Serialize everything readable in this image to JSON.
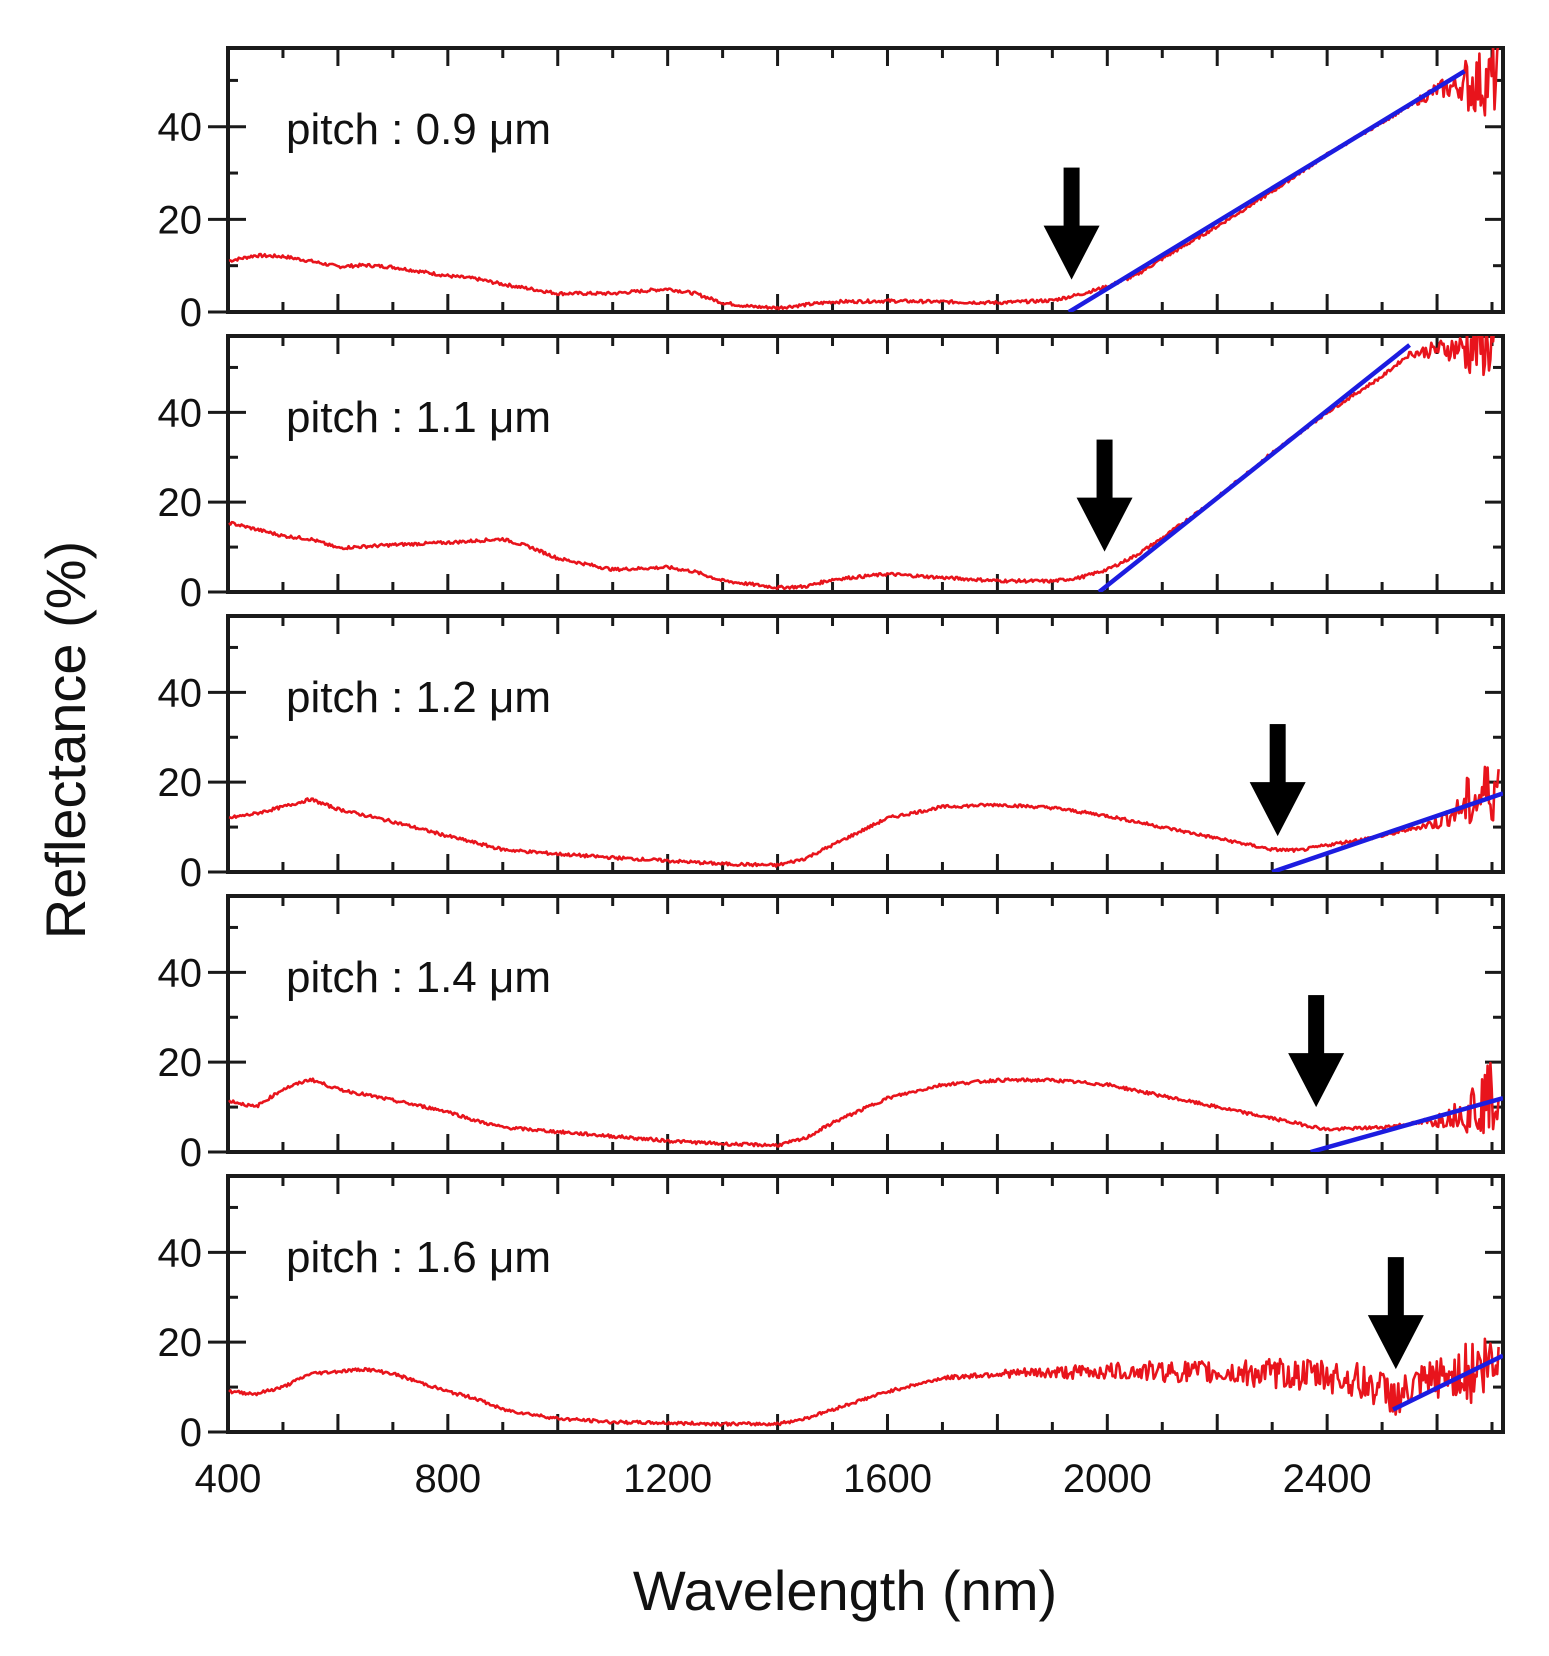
{
  "chart_data": {
    "type": "line",
    "xlabel": "Wavelength (nm)",
    "ylabel": "Reflectance (%)",
    "xlim": [
      400,
      2720
    ],
    "ylim": [
      0,
      57
    ],
    "xticks": [
      400,
      800,
      1200,
      1600,
      2000,
      2400
    ],
    "x_tick_labels": [
      "400",
      "800",
      "1200",
      "1600",
      "2000",
      "2400"
    ],
    "yticks": [
      0,
      20,
      40
    ],
    "y_tick_labels": [
      "0",
      "20",
      "40"
    ],
    "colors": {
      "data": "#e8141c",
      "fit": "#1c1ce0",
      "arrow": "#000000",
      "frame": "#1a1a1a"
    },
    "panels": [
      {
        "label": "pitch : 0.9 μm",
        "arrow_at": [
          1935,
          7
        ],
        "fit_line": [
          [
            1930,
            0
          ],
          [
            2650,
            52
          ]
        ],
        "noisy_from": 2550,
        "data": [
          [
            400,
            11
          ],
          [
            450,
            12.2
          ],
          [
            500,
            12
          ],
          [
            550,
            11
          ],
          [
            600,
            9.8
          ],
          [
            650,
            10.1
          ],
          [
            700,
            9.7
          ],
          [
            800,
            7.8
          ],
          [
            850,
            7.2
          ],
          [
            900,
            6
          ],
          [
            1000,
            4
          ],
          [
            1100,
            4
          ],
          [
            1200,
            5
          ],
          [
            1250,
            4
          ],
          [
            1300,
            2
          ],
          [
            1350,
            1.2
          ],
          [
            1400,
            0.9
          ],
          [
            1500,
            2.2
          ],
          [
            1600,
            2.4
          ],
          [
            1700,
            2.2
          ],
          [
            1800,
            2
          ],
          [
            1900,
            2.5
          ],
          [
            1950,
            3.8
          ],
          [
            2000,
            5.5
          ],
          [
            2050,
            7.8
          ],
          [
            2100,
            11.5
          ],
          [
            2200,
            18.5
          ],
          [
            2300,
            26
          ],
          [
            2400,
            34
          ],
          [
            2500,
            41
          ],
          [
            2600,
            48
          ],
          [
            2700,
            50
          ]
        ]
      },
      {
        "label": "pitch : 1.1 μm",
        "arrow_at": [
          1995,
          9
        ],
        "fit_line": [
          [
            1985,
            0
          ],
          [
            2550,
            55
          ]
        ],
        "noisy_from": 2540,
        "data": [
          [
            400,
            15.5
          ],
          [
            500,
            12.5
          ],
          [
            550,
            11.8
          ],
          [
            600,
            9.8
          ],
          [
            700,
            10.5
          ],
          [
            800,
            11
          ],
          [
            900,
            11.8
          ],
          [
            950,
            10
          ],
          [
            1000,
            7.5
          ],
          [
            1100,
            5
          ],
          [
            1200,
            5.5
          ],
          [
            1250,
            4.5
          ],
          [
            1300,
            2.5
          ],
          [
            1400,
            1
          ],
          [
            1450,
            1.2
          ],
          [
            1500,
            2.8
          ],
          [
            1600,
            4
          ],
          [
            1700,
            3.2
          ],
          [
            1800,
            2.5
          ],
          [
            1900,
            2.4
          ],
          [
            1950,
            3.2
          ],
          [
            2000,
            5
          ],
          [
            2050,
            8
          ],
          [
            2100,
            12
          ],
          [
            2200,
            21
          ],
          [
            2300,
            31
          ],
          [
            2400,
            40
          ],
          [
            2500,
            48
          ],
          [
            2550,
            53
          ],
          [
            2600,
            54
          ],
          [
            2700,
            55
          ]
        ]
      },
      {
        "label": "pitch : 1.2 μm",
        "arrow_at": [
          2310,
          8
        ],
        "fit_line": [
          [
            2300,
            0
          ],
          [
            2720,
            17.5
          ]
        ],
        "noisy_from": 2560,
        "data": [
          [
            400,
            12
          ],
          [
            450,
            13
          ],
          [
            500,
            14.5
          ],
          [
            550,
            16.2
          ],
          [
            600,
            14
          ],
          [
            700,
            11.2
          ],
          [
            800,
            8
          ],
          [
            850,
            6.5
          ],
          [
            900,
            5
          ],
          [
            1000,
            4
          ],
          [
            1100,
            3.2
          ],
          [
            1200,
            2.5
          ],
          [
            1300,
            1.8
          ],
          [
            1400,
            1.5
          ],
          [
            1450,
            3
          ],
          [
            1500,
            6
          ],
          [
            1600,
            12
          ],
          [
            1700,
            14.5
          ],
          [
            1800,
            15
          ],
          [
            1900,
            14.3
          ],
          [
            2000,
            12.5
          ],
          [
            2100,
            10
          ],
          [
            2200,
            7.5
          ],
          [
            2300,
            5
          ],
          [
            2350,
            4.8
          ],
          [
            2400,
            6
          ],
          [
            2500,
            8
          ],
          [
            2600,
            11
          ],
          [
            2650,
            14.5
          ],
          [
            2720,
            20
          ]
        ]
      },
      {
        "label": "pitch : 1.4 μm",
        "arrow_at": [
          2380,
          10
        ],
        "fit_line": [
          [
            2370,
            0
          ],
          [
            2720,
            12
          ]
        ],
        "noisy_from": 2560,
        "data": [
          [
            400,
            11.5
          ],
          [
            450,
            10
          ],
          [
            500,
            14
          ],
          [
            550,
            16.2
          ],
          [
            600,
            14
          ],
          [
            700,
            11.5
          ],
          [
            800,
            9
          ],
          [
            850,
            7
          ],
          [
            900,
            5.5
          ],
          [
            1000,
            4.5
          ],
          [
            1100,
            3.5
          ],
          [
            1200,
            2.5
          ],
          [
            1300,
            1.8
          ],
          [
            1400,
            1.5
          ],
          [
            1450,
            3
          ],
          [
            1500,
            6.5
          ],
          [
            1600,
            12
          ],
          [
            1700,
            15
          ],
          [
            1800,
            16
          ],
          [
            1900,
            16
          ],
          [
            2000,
            15
          ],
          [
            2100,
            12.5
          ],
          [
            2200,
            10
          ],
          [
            2300,
            7.5
          ],
          [
            2400,
            5
          ],
          [
            2500,
            5.5
          ],
          [
            2600,
            7
          ],
          [
            2650,
            9
          ],
          [
            2700,
            12.5
          ]
        ]
      },
      {
        "label": "pitch : 1.6 μm",
        "arrow_at": [
          2525,
          14
        ],
        "fit_line": [
          [
            2520,
            5
          ],
          [
            2720,
            17
          ]
        ],
        "noisy_from": 1700,
        "data": [
          [
            400,
            9
          ],
          [
            450,
            8.5
          ],
          [
            500,
            10
          ],
          [
            550,
            13
          ],
          [
            650,
            14
          ],
          [
            700,
            13
          ],
          [
            800,
            9
          ],
          [
            850,
            7.5
          ],
          [
            900,
            5
          ],
          [
            1000,
            3
          ],
          [
            1100,
            2.2
          ],
          [
            1200,
            2
          ],
          [
            1300,
            1.8
          ],
          [
            1400,
            1.8
          ],
          [
            1450,
            3
          ],
          [
            1500,
            5
          ],
          [
            1600,
            9
          ],
          [
            1700,
            12
          ],
          [
            1800,
            13
          ],
          [
            1900,
            13.2
          ],
          [
            2000,
            13.5
          ],
          [
            2100,
            13.5
          ],
          [
            2200,
            13.2
          ],
          [
            2300,
            13
          ],
          [
            2400,
            12.5
          ],
          [
            2450,
            11.5
          ],
          [
            2500,
            9.5
          ],
          [
            2530,
            7.5
          ],
          [
            2560,
            9.5
          ],
          [
            2600,
            12
          ],
          [
            2650,
            13
          ],
          [
            2700,
            15
          ]
        ]
      }
    ]
  }
}
